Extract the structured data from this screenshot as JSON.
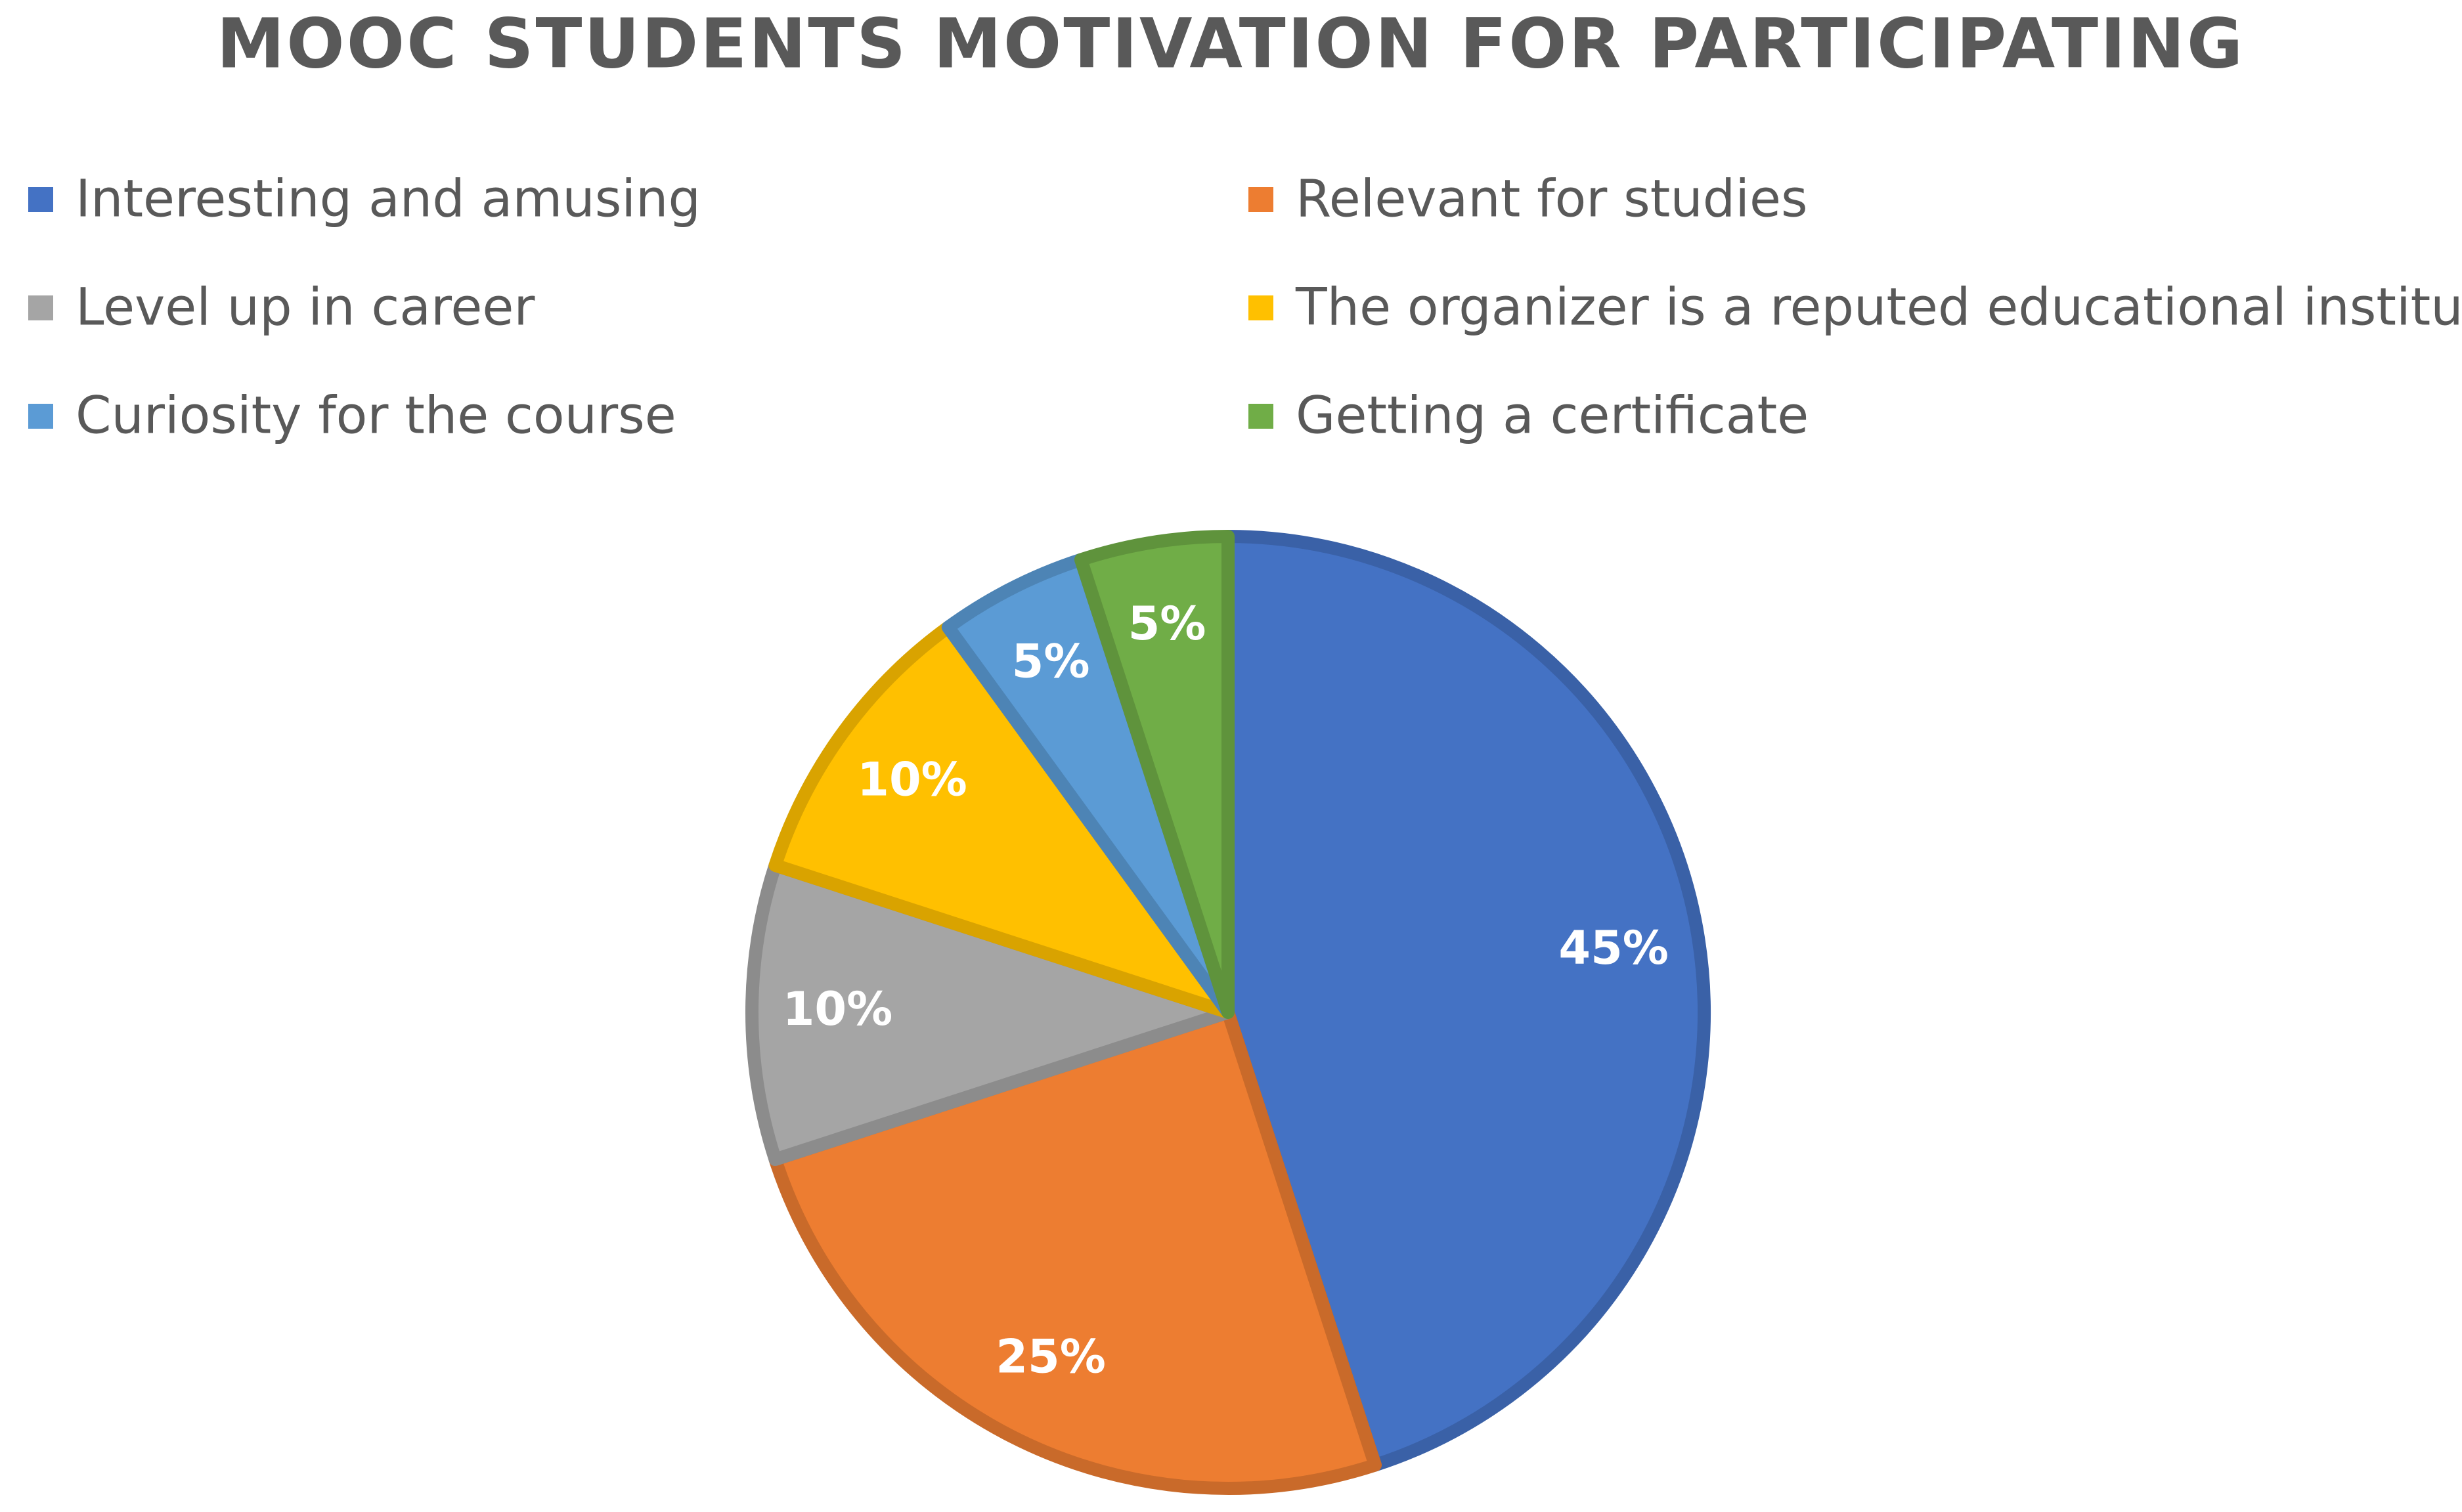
{
  "chart_data": {
    "type": "pie",
    "title": "MOOC STUDENTS MOTIVATION FOR PARTICIPATING",
    "categories": [
      "Interesting and amusing",
      "Relevant for studies",
      "Level up in career",
      "The organizer is a reputed educational institution",
      "Curiosity for the course",
      "Getting a certificate"
    ],
    "values": [
      45,
      25,
      10,
      10,
      5,
      5
    ],
    "value_labels": [
      "45%",
      "25%",
      "10%",
      "10%",
      "5%",
      "5%"
    ],
    "colors": [
      "#4472c4",
      "#ed7d31",
      "#a5a5a5",
      "#ffc000",
      "#5b9bd5",
      "#70ad47"
    ],
    "legend": "top"
  }
}
